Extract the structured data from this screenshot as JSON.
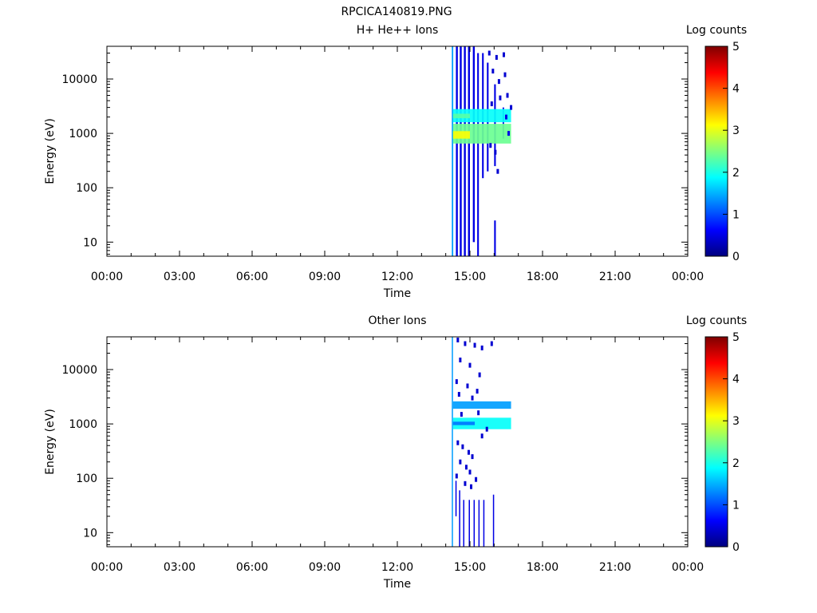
{
  "figure_title": "RPCICA140819.PNG",
  "colors": {
    "colorbar_stops": [
      "#00007f",
      "#0000ff",
      "#007fff",
      "#00ffff",
      "#7fff7f",
      "#ffff00",
      "#ff7f00",
      "#ff0000",
      "#7f0000"
    ],
    "axis": "#000000",
    "background": "#ffffff"
  },
  "chart_data": [
    {
      "type": "heatmap",
      "title": "H+ He++ Ions",
      "xlabel": "Time",
      "ylabel": "Energy (eV)",
      "colorbar_label": "Log counts",
      "colorbar_ticks": [
        "0",
        "1",
        "2",
        "3",
        "4",
        "5"
      ],
      "colorbar_range": [
        0,
        5
      ],
      "x_ticks": [
        "00:00",
        "03:00",
        "06:00",
        "09:00",
        "12:00",
        "15:00",
        "18:00",
        "21:00",
        "00:00"
      ],
      "x_range_hours": [
        0,
        24
      ],
      "y_scale": "log",
      "y_ticks": [
        "10",
        "100",
        "1000",
        "10000"
      ],
      "y_range_ev": [
        5.5,
        40000
      ],
      "columns": [
        {
          "t": 14.25,
          "w": 0.06,
          "bands": [
            {
              "e0": 5.5,
              "e1": 40000,
              "v": 1.4
            }
          ]
        },
        {
          "t": 14.42,
          "w": 0.08,
          "bands": [
            {
              "e0": 5.5,
              "e1": 40000,
              "v": 0.5
            }
          ]
        },
        {
          "t": 14.58,
          "w": 0.08,
          "bands": [
            {
              "e0": 5.5,
              "e1": 40000,
              "v": 0.5
            }
          ]
        },
        {
          "t": 14.75,
          "w": 0.08,
          "bands": [
            {
              "e0": 5.5,
              "e1": 40000,
              "v": 0.5
            }
          ]
        },
        {
          "t": 14.92,
          "w": 0.08,
          "bands": [
            {
              "e0": 5.5,
              "e1": 40000,
              "v": 0.5
            }
          ]
        },
        {
          "t": 15.12,
          "w": 0.08,
          "bands": [
            {
              "e0": 10,
              "e1": 40000,
              "v": 0.5
            }
          ]
        },
        {
          "t": 15.3,
          "w": 0.07,
          "bands": [
            {
              "e0": 5.5,
              "e1": 30000,
              "v": 0.5
            }
          ]
        },
        {
          "t": 15.5,
          "w": 0.07,
          "bands": [
            {
              "e0": 150,
              "e1": 30000,
              "v": 0.5
            }
          ]
        },
        {
          "t": 15.7,
          "w": 0.07,
          "bands": [
            {
              "e0": 200,
              "e1": 20000,
              "v": 0.5
            }
          ]
        },
        {
          "t": 16.0,
          "w": 0.07,
          "bands": [
            {
              "e0": 5.5,
              "e1": 25,
              "v": 0.5
            },
            {
              "e0": 250,
              "e1": 8000,
              "v": 0.5
            }
          ]
        },
        {
          "t": 16.35,
          "w": 0.06,
          "bands": [
            {
              "e0": 800,
              "e1": 3000,
              "v": 0.5
            }
          ]
        }
      ],
      "bands": [
        {
          "t0": 14.3,
          "t1": 16.7,
          "e0": 1600,
          "e1": 2800,
          "v": 1.9
        },
        {
          "t0": 14.3,
          "t1": 16.7,
          "e0": 650,
          "e1": 1500,
          "v": 2.4
        },
        {
          "t0": 14.3,
          "t1": 15.0,
          "e0": 800,
          "e1": 1100,
          "v": 3.1
        },
        {
          "t0": 14.3,
          "t1": 15.0,
          "e0": 1900,
          "e1": 2300,
          "v": 2.3
        }
      ],
      "speckles": [
        {
          "t": 15.8,
          "e": 30000,
          "v": 0.4
        },
        {
          "t": 16.1,
          "e": 25000,
          "v": 0.4
        },
        {
          "t": 16.4,
          "e": 28000,
          "v": 0.4
        },
        {
          "t": 15.95,
          "e": 14000,
          "v": 0.4
        },
        {
          "t": 16.2,
          "e": 9000,
          "v": 0.4
        },
        {
          "t": 16.55,
          "e": 5000,
          "v": 0.4
        },
        {
          "t": 16.45,
          "e": 12000,
          "v": 0.4
        },
        {
          "t": 16.05,
          "e": 450,
          "v": 0.4
        },
        {
          "t": 16.15,
          "e": 200,
          "v": 0.4
        },
        {
          "t": 15.85,
          "e": 600,
          "v": 0.4
        },
        {
          "t": 16.6,
          "e": 1000,
          "v": 0.5
        },
        {
          "t": 16.5,
          "e": 2000,
          "v": 0.5
        },
        {
          "t": 15.9,
          "e": 3500,
          "v": 0.4
        },
        {
          "t": 16.25,
          "e": 4500,
          "v": 0.4
        },
        {
          "t": 16.7,
          "e": 3000,
          "v": 0.4
        }
      ]
    },
    {
      "type": "heatmap",
      "title": "Other Ions",
      "xlabel": "Time",
      "ylabel": "Energy (eV)",
      "colorbar_label": "Log counts",
      "colorbar_ticks": [
        "0",
        "1",
        "2",
        "3",
        "4",
        "5"
      ],
      "colorbar_range": [
        0,
        5
      ],
      "x_ticks": [
        "00:00",
        "03:00",
        "06:00",
        "09:00",
        "12:00",
        "15:00",
        "18:00",
        "21:00",
        "00:00"
      ],
      "x_range_hours": [
        0,
        24
      ],
      "y_scale": "log",
      "y_ticks": [
        "10",
        "100",
        "1000",
        "10000"
      ],
      "y_range_ev": [
        5.5,
        40000
      ],
      "columns": [
        {
          "t": 14.25,
          "w": 0.05,
          "bands": [
            {
              "e0": 5.5,
              "e1": 40000,
              "v": 1.4
            }
          ]
        },
        {
          "t": 14.4,
          "w": 0.04,
          "bands": [
            {
              "e0": 20,
              "e1": 90,
              "v": 0.5
            }
          ]
        },
        {
          "t": 14.55,
          "w": 0.05,
          "bands": [
            {
              "e0": 5.5,
              "e1": 60,
              "v": 0.5
            }
          ]
        },
        {
          "t": 14.72,
          "w": 0.04,
          "bands": [
            {
              "e0": 5.5,
              "e1": 40,
              "v": 0.5
            }
          ]
        },
        {
          "t": 14.95,
          "w": 0.05,
          "bands": [
            {
              "e0": 5.5,
              "e1": 40,
              "v": 0.5
            }
          ]
        },
        {
          "t": 15.15,
          "w": 0.05,
          "bands": [
            {
              "e0": 5.5,
              "e1": 40,
              "v": 0.5
            }
          ]
        },
        {
          "t": 15.35,
          "w": 0.04,
          "bands": [
            {
              "e0": 5.5,
              "e1": 40,
              "v": 0.5
            }
          ]
        },
        {
          "t": 15.55,
          "w": 0.04,
          "bands": [
            {
              "e0": 5.5,
              "e1": 40,
              "v": 0.5
            }
          ]
        },
        {
          "t": 15.95,
          "w": 0.05,
          "bands": [
            {
              "e0": 5.5,
              "e1": 50,
              "v": 0.5
            }
          ]
        }
      ],
      "bands": [
        {
          "t0": 14.3,
          "t1": 16.7,
          "e0": 1900,
          "e1": 2600,
          "v": 1.4
        },
        {
          "t0": 14.3,
          "t1": 16.7,
          "e0": 800,
          "e1": 1300,
          "v": 1.9
        },
        {
          "t0": 14.3,
          "t1": 15.2,
          "e0": 950,
          "e1": 1100,
          "v": 1.2
        }
      ],
      "speckles": [
        {
          "t": 14.5,
          "e": 35000,
          "v": 0.4
        },
        {
          "t": 14.8,
          "e": 30000,
          "v": 0.4
        },
        {
          "t": 15.2,
          "e": 28000,
          "v": 0.4
        },
        {
          "t": 15.5,
          "e": 25000,
          "v": 0.4
        },
        {
          "t": 15.9,
          "e": 30000,
          "v": 0.4
        },
        {
          "t": 14.6,
          "e": 15000,
          "v": 0.4
        },
        {
          "t": 15.0,
          "e": 12000,
          "v": 0.4
        },
        {
          "t": 15.4,
          "e": 8000,
          "v": 0.4
        },
        {
          "t": 14.45,
          "e": 6000,
          "v": 0.4
        },
        {
          "t": 14.9,
          "e": 5000,
          "v": 0.4
        },
        {
          "t": 15.3,
          "e": 4000,
          "v": 0.4
        },
        {
          "t": 14.55,
          "e": 3500,
          "v": 0.4
        },
        {
          "t": 15.1,
          "e": 3000,
          "v": 0.4
        },
        {
          "t": 14.5,
          "e": 450,
          "v": 0.4
        },
        {
          "t": 14.7,
          "e": 380,
          "v": 0.4
        },
        {
          "t": 14.95,
          "e": 300,
          "v": 0.4
        },
        {
          "t": 15.1,
          "e": 250,
          "v": 0.4
        },
        {
          "t": 14.6,
          "e": 200,
          "v": 0.4
        },
        {
          "t": 14.85,
          "e": 160,
          "v": 0.4
        },
        {
          "t": 15.0,
          "e": 130,
          "v": 0.4
        },
        {
          "t": 14.45,
          "e": 110,
          "v": 0.4
        },
        {
          "t": 15.25,
          "e": 95,
          "v": 0.4
        },
        {
          "t": 14.8,
          "e": 80,
          "v": 0.4
        },
        {
          "t": 15.05,
          "e": 70,
          "v": 0.4
        },
        {
          "t": 15.5,
          "e": 600,
          "v": 0.4
        },
        {
          "t": 15.7,
          "e": 800,
          "v": 0.4
        },
        {
          "t": 14.65,
          "e": 1500,
          "v": 0.4
        },
        {
          "t": 15.35,
          "e": 1600,
          "v": 0.4
        }
      ]
    }
  ]
}
